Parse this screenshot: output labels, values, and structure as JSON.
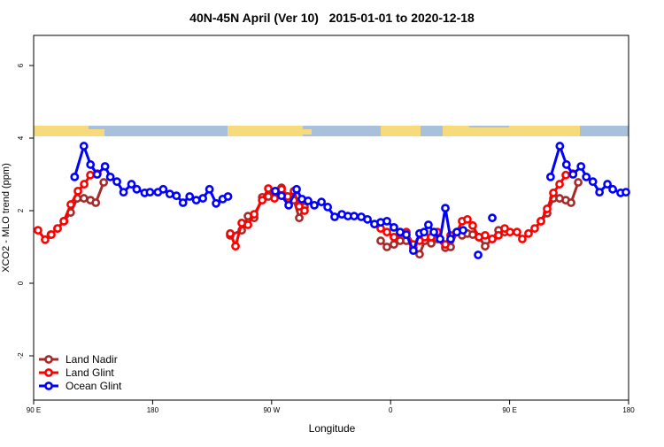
{
  "chart_data": {
    "type": "line",
    "title": "40N-45N April (Ver 10)   2015-01-01 to 2020-12-18",
    "xlabel": "Longitude",
    "ylabel": "XCO2 - MLO trend (ppm)",
    "xlim": [
      90,
      540
    ],
    "ylim": [
      -3.22,
      6.83
    ],
    "xticks": [
      {
        "value": 90,
        "label": "90 E"
      },
      180,
      {
        "value": 270,
        "label": "90 W"
      },
      {
        "value": 360,
        "label": "0"
      },
      {
        "value": 450,
        "label": "90 E"
      },
      {
        "value": 540,
        "label": "180"
      }
    ],
    "yticks": [
      -2,
      0,
      2,
      4,
      6
    ],
    "legend": "bottom-left",
    "series": [
      {
        "name": "Land Nadir",
        "color": "#a52a2a",
        "x": [
          103,
          108,
          113,
          118,
          123,
          128,
          133,
          137,
          143,
          null,
          238.7,
          247.4,
          252.1,
          256.8,
          262.9,
          267.5,
          272.2,
          277.5,
          282.2,
          286.9,
          290.9,
          294.9,
          null,
          352.5,
          357.2,
          362.5,
          367.2,
          371.9,
          377.2,
          381.9,
          385.9,
          390.7,
          395.4,
          401.4,
          405.4,
          410.1,
          414.1,
          418.1,
          422.1,
          426.8,
          431.5,
          436.9,
          441.6,
          446.3,
          null,
          473.7,
          478.4,
          483.1,
          487.8,
          492.5,
          496.5,
          501.9
        ],
        "values": [
          1.34,
          1.51,
          1.71,
          1.95,
          2.34,
          2.34,
          2.29,
          2.22,
          2.78,
          null,
          1.32,
          1.46,
          1.85,
          1.8,
          2.37,
          2.39,
          2.49,
          2.63,
          2.39,
          2.29,
          1.8,
          2.1,
          null,
          1.17,
          1.0,
          1.07,
          1.17,
          1.17,
          0.98,
          0.8,
          1.17,
          1.1,
          1.22,
          0.98,
          1.0,
          1.41,
          1.32,
          1.37,
          1.34,
          1.27,
          1.02,
          1.22,
          1.46,
          1.41,
          null,
          1.71,
          1.93,
          2.34,
          2.34,
          2.29,
          2.22,
          2.78
        ]
      },
      {
        "name": "Land Glint",
        "color": "#ff0000",
        "x": [
          93.3,
          98.7,
          103.4,
          108.1,
          112.8,
          118.1,
          123.5,
          128.2,
          132.9,
          138.2,
          null,
          238.7,
          242.7,
          247.4,
          252.1,
          256.8,
          262.9,
          267.5,
          272.2,
          277.5,
          282.2,
          286.9,
          290.9,
          294.9,
          null,
          352.5,
          357.2,
          362.5,
          367.2,
          371.9,
          377.2,
          381.9,
          385.9,
          390.7,
          395.4,
          401.4,
          405.4,
          410.1,
          414.1,
          418.1,
          422.1,
          426.8,
          431.5,
          436.9,
          441.6,
          446.3,
          450.3,
          455.6,
          459.6,
          464.3,
          469,
          473.7,
          478.4,
          483.1,
          487.8,
          492.5,
          497.8
        ],
        "values": [
          1.46,
          1.2,
          1.34,
          1.51,
          1.71,
          2.17,
          2.54,
          2.73,
          2.98,
          3.02,
          null,
          1.37,
          1.02,
          1.66,
          1.61,
          1.9,
          2.29,
          2.61,
          2.34,
          2.59,
          2.39,
          2.54,
          2.12,
          2.0,
          null,
          1.51,
          1.41,
          1.27,
          1.37,
          1.41,
          1.07,
          1.17,
          1.27,
          1.27,
          1.41,
          1.07,
          1.32,
          1.41,
          1.71,
          1.76,
          1.59,
          1.27,
          1.32,
          1.22,
          1.32,
          1.51,
          1.41,
          1.41,
          1.22,
          1.37,
          1.51,
          1.71,
          2.05,
          2.49,
          2.73,
          2.98,
          3.02
        ]
      },
      {
        "name": "Ocean Glint",
        "color": "#0000ff",
        "x": [
          121,
          128,
          133,
          138,
          144,
          148,
          153,
          158,
          164,
          168,
          174,
          178,
          184,
          188,
          193,
          198,
          203,
          208,
          213,
          218,
          223,
          228,
          233,
          237,
          null,
          272.8,
          277.5,
          282.9,
          288.9,
          292.9,
          297.6,
          302.3,
          307.7,
          312.4,
          317.7,
          323.1,
          327.7,
          332.4,
          337.8,
          342.5,
          347.8,
          352.5,
          357.2,
          362.5,
          367.2,
          371.9,
          377.2,
          381.9,
          385.3,
          388.6,
          392.7,
          397.4,
          401.4,
          405.4,
          410.1,
          414.8,
          null,
          426.2,
          null,
          436.9,
          null,
          481,
          488,
          493,
          498,
          504,
          508,
          513,
          518,
          524,
          528,
          534,
          538
        ],
        "values": [
          2.93,
          3.78,
          3.27,
          3.0,
          3.22,
          2.93,
          2.8,
          2.51,
          2.73,
          2.59,
          2.49,
          2.51,
          2.51,
          2.59,
          2.46,
          2.41,
          2.22,
          2.39,
          2.29,
          2.34,
          2.59,
          2.2,
          2.32,
          2.39,
          null,
          2.54,
          2.41,
          2.15,
          2.59,
          2.32,
          2.27,
          2.15,
          2.24,
          2.1,
          1.83,
          1.9,
          1.85,
          1.85,
          1.83,
          1.76,
          1.63,
          1.68,
          1.71,
          1.54,
          1.41,
          1.34,
          0.9,
          1.37,
          1.41,
          1.61,
          1.41,
          1.22,
          2.07,
          1.22,
          1.41,
          1.46,
          null,
          0.78,
          null,
          1.8,
          null,
          2.93,
          3.78,
          3.27,
          3.0,
          3.22,
          2.93,
          2.8,
          2.51,
          2.73,
          2.59,
          2.49,
          2.51
        ]
      }
    ]
  }
}
